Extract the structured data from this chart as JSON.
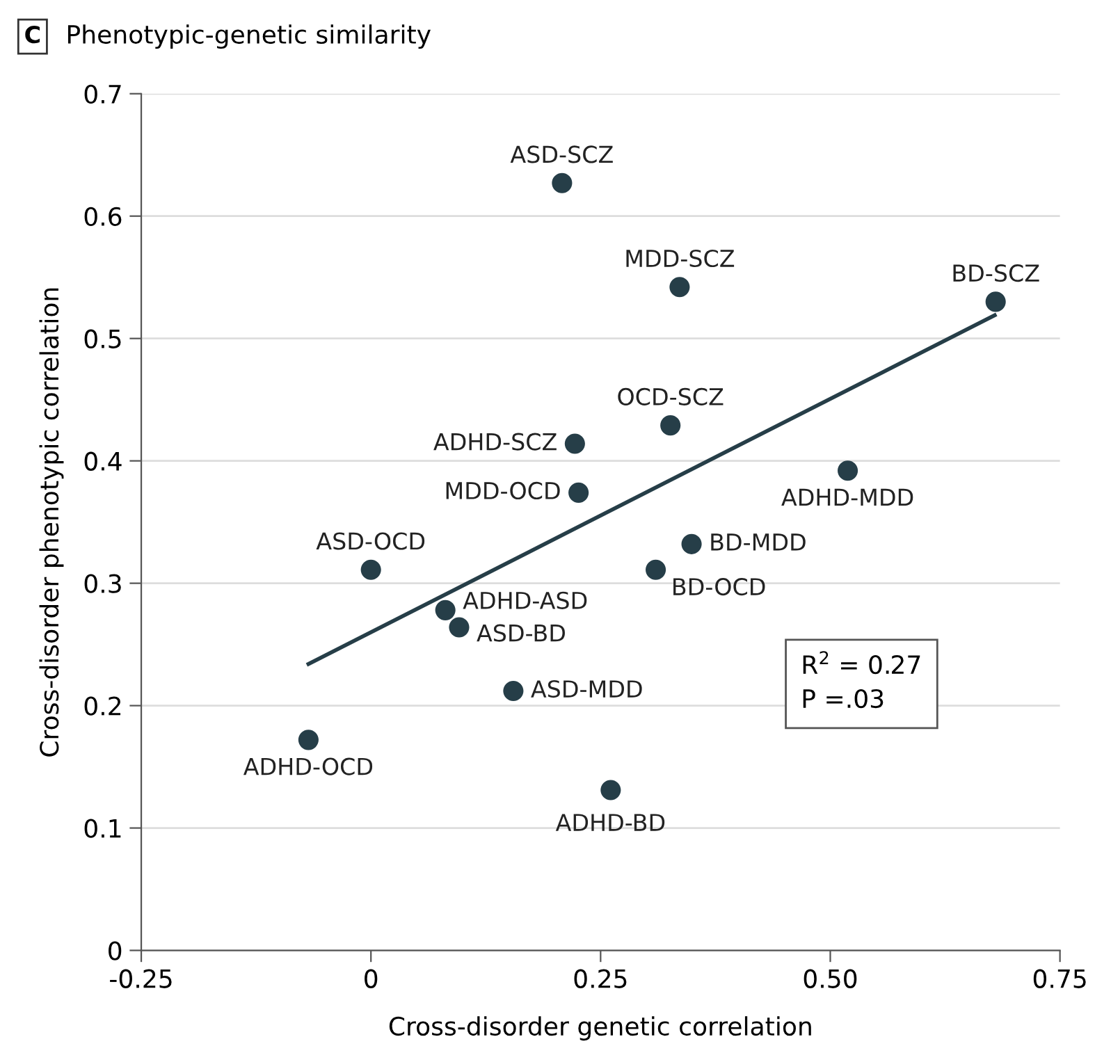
{
  "chart_data": {
    "type": "scatter",
    "title": "Phenotypic-genetic similarity",
    "xlabel": "Cross-disorder genetic correlation",
    "ylabel": "Cross-disorder phenotypic correlation",
    "annotations": [
      "C",
      "R$^{2}$ = 0.27",
      "P =.03"
    ],
    "series": [
      {
        "color": "#263e48",
        "marker": "circle",
        "x": [
          0.208,
          0.336,
          0.68,
          0.326,
          0.222,
          0.226,
          0.519,
          0.349,
          0.31,
          0.0,
          0.081,
          0.096,
          0.155,
          -0.068,
          0.261
        ],
        "values": [
          0.627,
          0.542,
          0.53,
          0.429,
          0.414,
          0.374,
          0.392,
          0.332,
          0.311,
          0.311,
          0.278,
          0.264,
          0.212,
          0.172,
          0.131
        ],
        "value_labels": [
          "ASD-SCZ",
          "MDD-SCZ",
          "BD-SCZ",
          "OCD-SCZ",
          "ADHD-SCZ",
          "MDD-OCD",
          "ADHD-MDD",
          "BD-MDD",
          "BD-OCD",
          "ASD-OCD",
          "ADHD-ASD",
          "ASD-BD",
          "ASD-MDD",
          "ADHD-OCD",
          "ADHD-BD"
        ]
      },
      {
        "type": "line",
        "color": "#263e48",
        "line_style": "solid",
        "marker": "none",
        "x": [
          -0.068,
          0.679
        ],
        "values": [
          0.234,
          0.519
        ]
      }
    ],
    "xlim": [
      -0.25,
      0.75
    ],
    "xticks": [
      -0.25,
      0,
      0.25,
      {
        "value": 0.5,
        "label": "0.50"
      },
      0.75
    ],
    "ylim": [
      0,
      0.7
    ],
    "yticks": [
      0,
      0.1,
      0.2,
      0.3,
      0.4,
      0.5,
      0.6,
      0.7
    ],
    "grid": "y",
    "legend": false
  }
}
